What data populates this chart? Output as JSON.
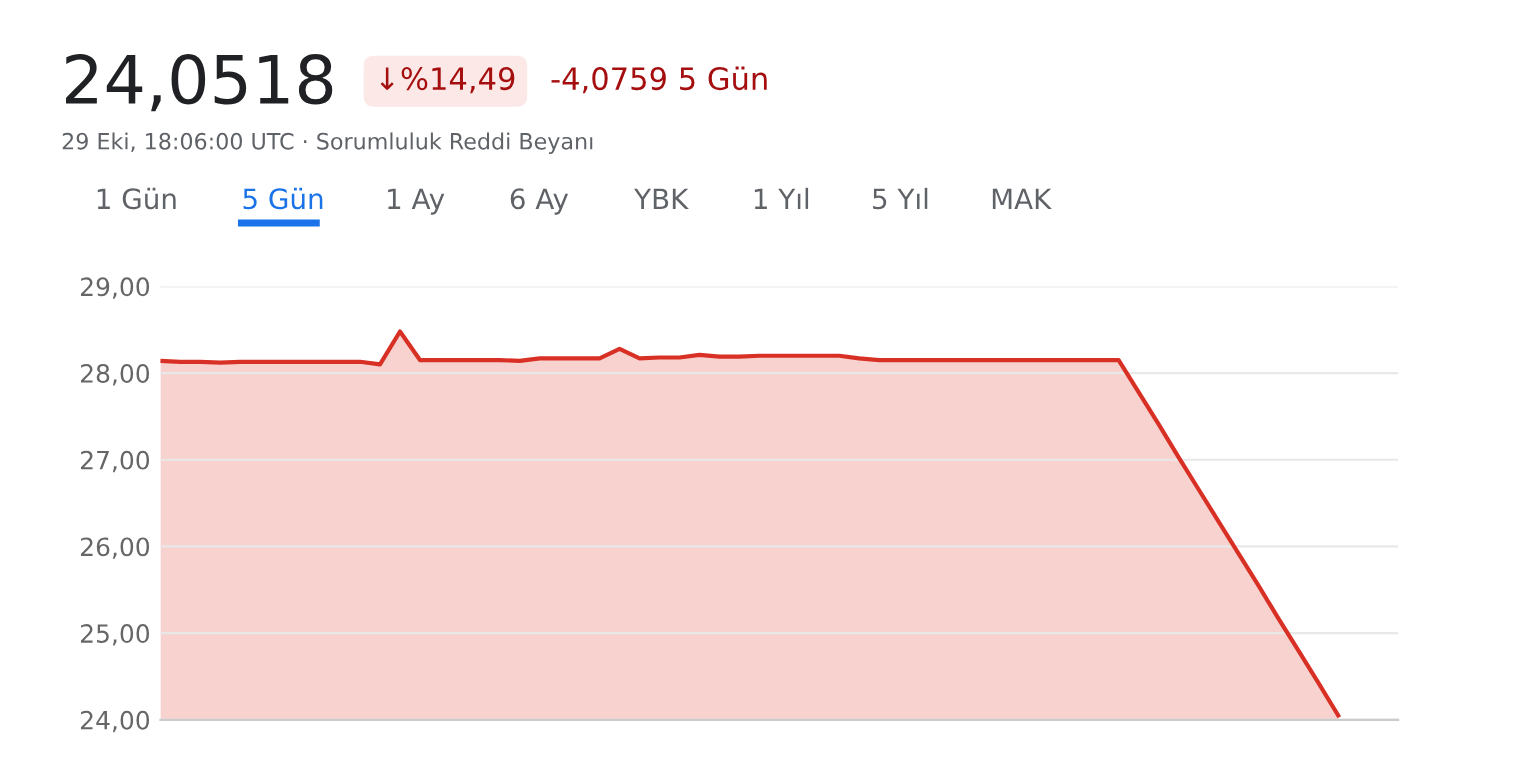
{
  "chart_data": {
    "type": "area",
    "title": "24,0518",
    "annotations": [
      "↓%14,49",
      "-4,0759 5 Gün",
      "29 Eki, 18:06:00 UTC · Sorumluluk Reddi Beyanı",
      "1 Gün",
      "5 Gün",
      "1 Ay",
      "6 Ay",
      "YBK",
      "1 Yıl",
      "5 Yıl",
      "MAK"
    ],
    "categories": [
      null,
      null,
      null,
      null,
      null,
      null,
      null,
      null,
      null,
      null,
      null,
      null,
      null,
      null,
      null,
      null,
      null,
      null,
      null,
      null,
      null,
      null,
      null,
      null,
      null,
      null,
      null,
      null,
      null,
      null,
      null,
      null,
      null,
      null,
      null,
      null,
      null,
      null,
      null,
      null,
      null,
      null,
      null,
      null,
      null,
      null,
      null,
      null,
      null,
      null,
      null,
      null,
      null,
      null,
      null,
      null,
      null,
      null,
      null,
      null
    ],
    "series": [
      {
        "color": "#d93025",
        "values": [
          28.14,
          28.13,
          28.13,
          28.12,
          28.13,
          28.13,
          28.13,
          28.13,
          28.13,
          28.13,
          28.13,
          28.1,
          28.48,
          28.15,
          28.15,
          28.15,
          28.15,
          28.15,
          28.14,
          28.17,
          28.17,
          28.17,
          28.17,
          28.28,
          28.17,
          28.18,
          28.18,
          28.21,
          28.19,
          28.19,
          28.2,
          28.2,
          28.2,
          28.2,
          28.2,
          28.17,
          28.15,
          28.15,
          28.15,
          28.15,
          28.15,
          28.15,
          28.15,
          28.15,
          28.15,
          28.15,
          28.15,
          28.15,
          28.15,
          27.78,
          27.41,
          27.03,
          26.66,
          26.29,
          25.92,
          25.55,
          25.17,
          24.8,
          24.43,
          24.05
        ]
      }
    ],
    "ylim": [
      24,
      29
    ],
    "yticks": [
      {
        "value": 24,
        "label": "24,00"
      },
      {
        "value": 25,
        "label": "25,00"
      },
      {
        "value": 26,
        "label": "26,00"
      },
      {
        "value": 27,
        "label": "27,00"
      },
      {
        "value": 28,
        "label": "28,00"
      },
      {
        "value": 29,
        "label": "29,00"
      }
    ],
    "grid": "y"
  }
}
